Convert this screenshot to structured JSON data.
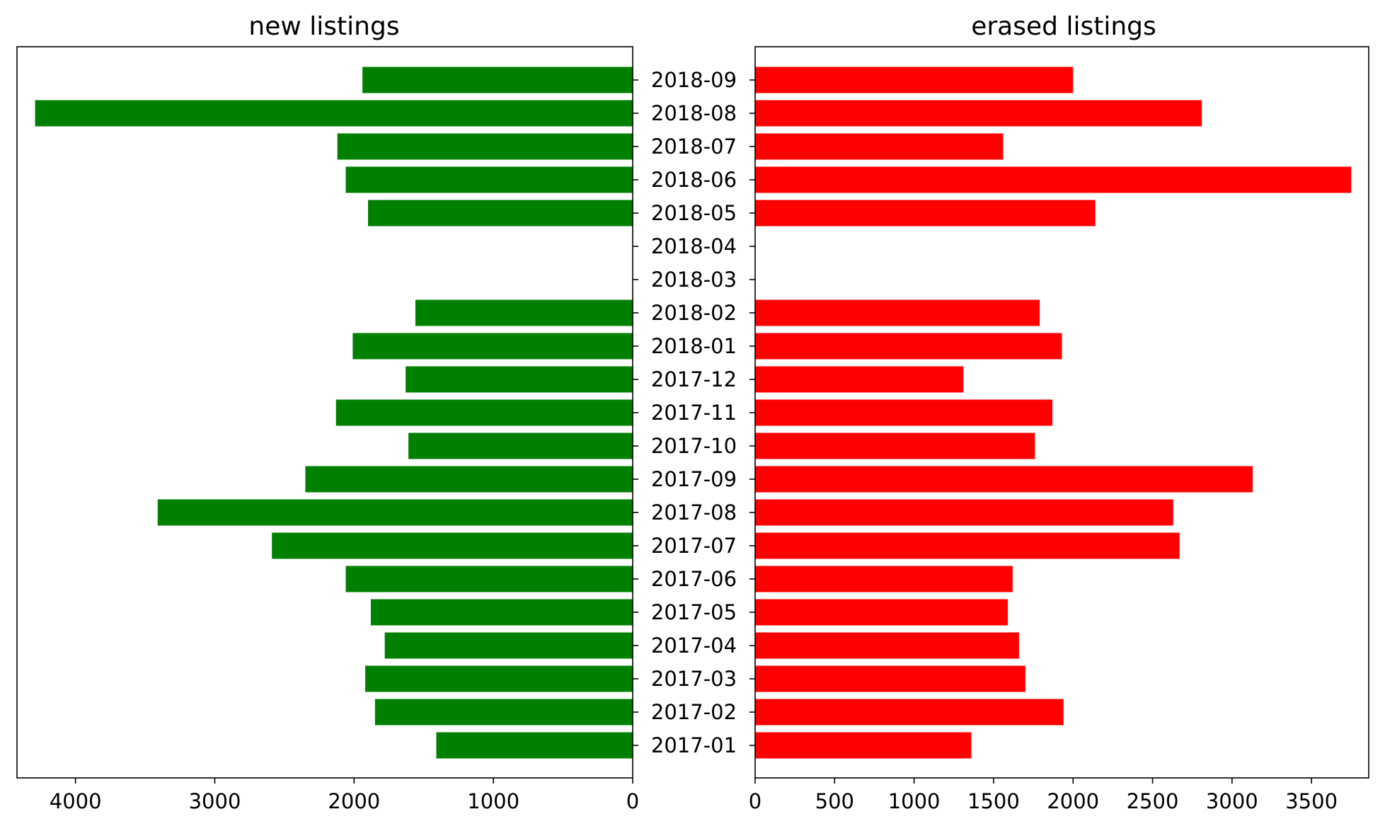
{
  "chart_data": {
    "type": "bar",
    "orientation": "horizontal",
    "categories": [
      "2017-01",
      "2017-02",
      "2017-03",
      "2017-04",
      "2017-05",
      "2017-06",
      "2017-07",
      "2017-08",
      "2017-09",
      "2017-10",
      "2017-11",
      "2017-12",
      "2018-01",
      "2018-02",
      "2018-03",
      "2018-04",
      "2018-05",
      "2018-06",
      "2018-07",
      "2018-08",
      "2018-09"
    ],
    "panels": [
      {
        "title": "new listings",
        "color": "#008000",
        "direction": "leftward",
        "xlim": [
          0,
          4420
        ],
        "xticks": [
          0,
          1000,
          2000,
          3000,
          4000
        ],
        "values": [
          1410,
          1850,
          1920,
          1780,
          1880,
          2060,
          2590,
          3410,
          2350,
          1610,
          2130,
          1630,
          2010,
          1560,
          0,
          0,
          1900,
          2060,
          2120,
          4290,
          1940
        ]
      },
      {
        "title": "erased listings",
        "color": "#ff0000",
        "direction": "rightward",
        "xlim": [
          0,
          3860
        ],
        "xticks": [
          0,
          500,
          1000,
          1500,
          2000,
          2500,
          3000,
          3500
        ],
        "values": [
          1360,
          1940,
          1700,
          1660,
          1590,
          1620,
          2670,
          2630,
          3130,
          1760,
          1870,
          1310,
          1930,
          1790,
          0,
          0,
          2140,
          3750,
          1560,
          2810,
          2000
        ]
      }
    ]
  }
}
